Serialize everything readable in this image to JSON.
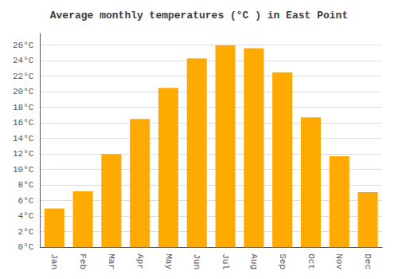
{
  "chart_data": {
    "type": "bar",
    "title": "Average monthly temperatures (°C ) in East Point",
    "categories": [
      "Jan",
      "Feb",
      "Mar",
      "Apr",
      "May",
      "Jun",
      "Jul",
      "Aug",
      "Sep",
      "Oct",
      "Nov",
      "Dec"
    ],
    "values": [
      5.0,
      7.2,
      12.0,
      16.5,
      20.5,
      24.3,
      26.0,
      25.6,
      22.5,
      16.7,
      11.7,
      7.1
    ],
    "color": "#FFAA00",
    "ylim": [
      0,
      27.5
    ],
    "yticks": [
      {
        "value": 0,
        "label": "0°C"
      },
      {
        "value": 2,
        "label": "2°C"
      },
      {
        "value": 4,
        "label": "4°C"
      },
      {
        "value": 6,
        "label": "6°C"
      },
      {
        "value": 8,
        "label": "8°C"
      },
      {
        "value": 10,
        "label": "10°C"
      },
      {
        "value": 12,
        "label": "12°C"
      },
      {
        "value": 14,
        "label": "14°C"
      },
      {
        "value": 16,
        "label": "16°C"
      },
      {
        "value": 18,
        "label": "18°C"
      },
      {
        "value": 20,
        "label": "20°C"
      },
      {
        "value": 22,
        "label": "22°C"
      },
      {
        "value": 24,
        "label": "24°C"
      },
      {
        "value": 26,
        "label": "26°C"
      }
    ],
    "grid": true
  }
}
